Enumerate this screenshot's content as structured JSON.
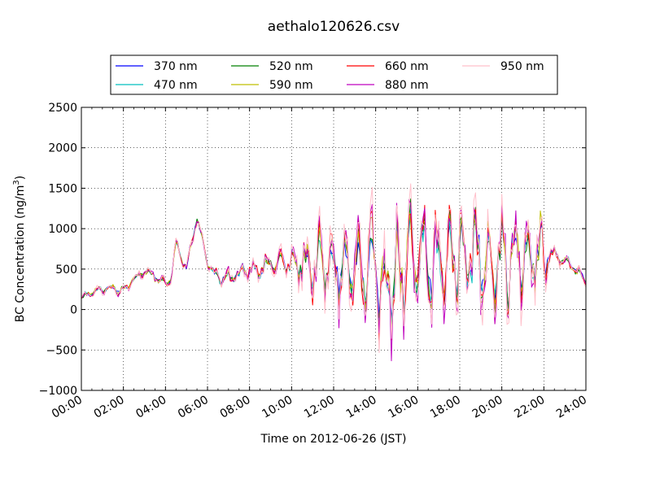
{
  "chart_data": {
    "type": "line",
    "title": "aethalo120626.csv",
    "xlabel": "Time on 2012-06-26 (JST)",
    "ylabel": "BC Concentration (ng/m",
    "ylabel_sup": "3",
    "ylabel_close": ")",
    "xlim": [
      "00:00",
      "24:00"
    ],
    "ylim": [
      -1000,
      2500
    ],
    "x_ticks": [
      "00:00",
      "02:00",
      "04:00",
      "06:00",
      "08:00",
      "10:00",
      "12:00",
      "14:00",
      "16:00",
      "18:00",
      "20:00",
      "22:00",
      "24:00"
    ],
    "y_ticks": [
      -1000,
      -500,
      0,
      500,
      1000,
      1500,
      2000,
      2500
    ],
    "grid": true,
    "legend_position": "top-center",
    "legend_columns": 4,
    "series": [
      {
        "name": "370 nm",
        "color": "#0000ff",
        "seed": 11,
        "noise": 0.8
      },
      {
        "name": "470 nm",
        "color": "#00bfbf",
        "seed": 23,
        "noise": 0.85
      },
      {
        "name": "520 nm",
        "color": "#008000",
        "seed": 37,
        "noise": 0.9
      },
      {
        "name": "590 nm",
        "color": "#bfbf00",
        "seed": 41,
        "noise": 0.95
      },
      {
        "name": "660 nm",
        "color": "#ff0000",
        "seed": 53,
        "noise": 1.05
      },
      {
        "name": "880 nm",
        "color": "#bf00bf",
        "seed": 67,
        "noise": 1.15
      },
      {
        "name": "950 nm",
        "color": "#ffc0cb",
        "seed": 79,
        "noise": 1.35
      }
    ],
    "baseline_profile": {
      "hours": [
        0,
        0.5,
        1,
        1.5,
        2,
        2.5,
        3,
        3.5,
        4,
        4.3,
        4.5,
        4.8,
        5,
        5.3,
        5.5,
        5.7,
        6,
        6.3,
        6.6,
        7,
        7.5,
        8,
        8.5,
        9,
        9.5,
        10,
        11,
        12,
        13,
        14,
        15,
        16,
        17,
        18,
        19,
        20,
        21,
        22,
        22.5,
        23,
        23.5,
        24
      ],
      "values": [
        150,
        220,
        250,
        260,
        230,
        380,
        470,
        420,
        300,
        420,
        820,
        620,
        520,
        900,
        1150,
        900,
        600,
        450,
        380,
        380,
        450,
        520,
        500,
        560,
        580,
        560,
        560,
        520,
        480,
        380,
        400,
        600,
        560,
        700,
        660,
        600,
        600,
        700,
        680,
        600,
        500,
        370
      ]
    },
    "amplitude_profile": {
      "hours": [
        0,
        6,
        7,
        8,
        9,
        10,
        11,
        12,
        13,
        14,
        15,
        16,
        17,
        18,
        19,
        20,
        21,
        22,
        22.3,
        24
      ],
      "values": [
        40,
        70,
        90,
        110,
        130,
        170,
        380,
        430,
        560,
        650,
        700,
        720,
        650,
        600,
        560,
        560,
        540,
        460,
        90,
        60
      ]
    }
  }
}
